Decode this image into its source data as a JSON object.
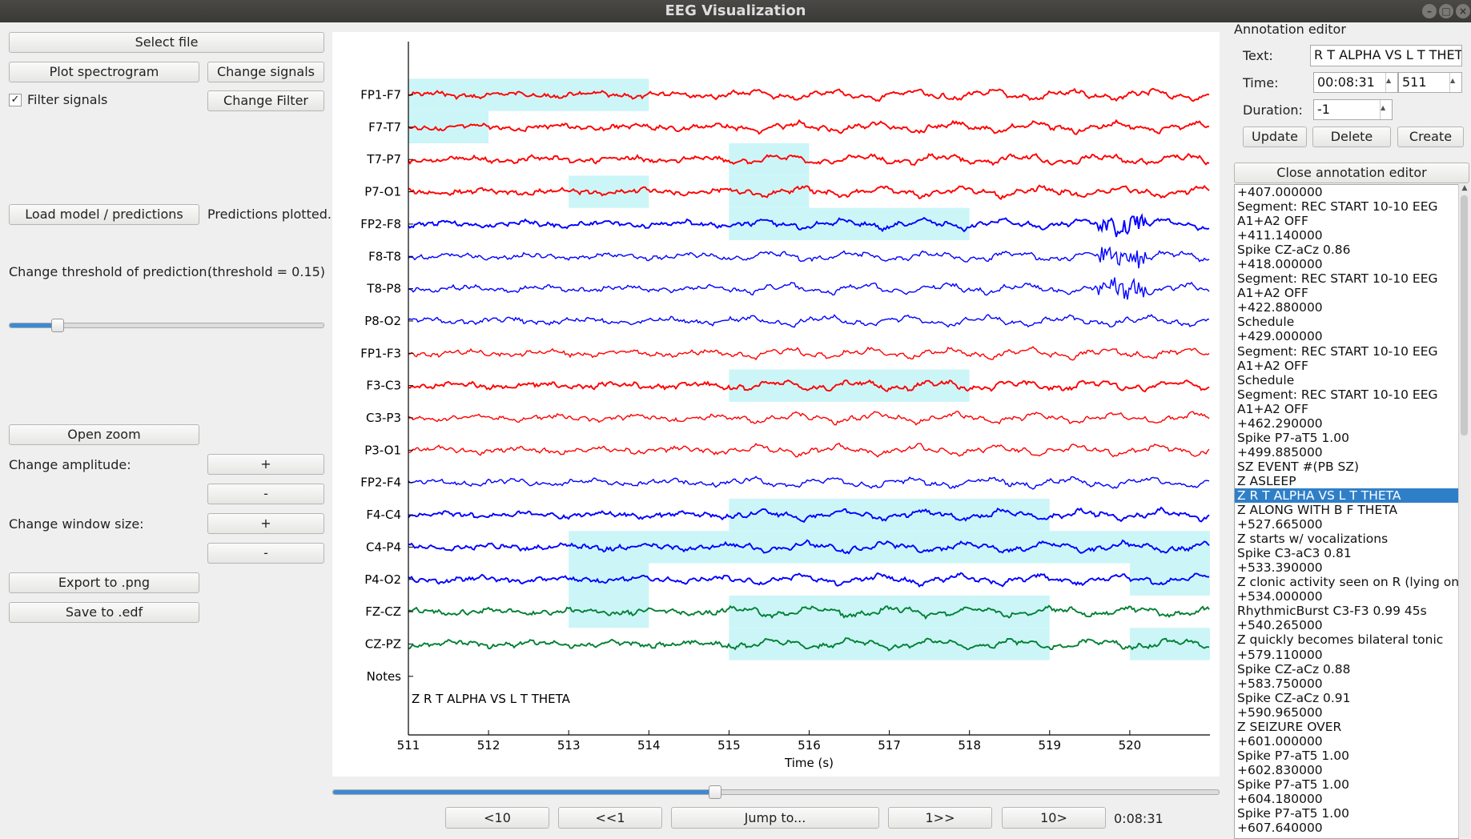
{
  "window": {
    "title": "EEG Visualization"
  },
  "left": {
    "select_file": "Select file",
    "plot_spectrogram": "Plot spectrogram",
    "change_signals": "Change signals",
    "filter_signals": "Filter signals",
    "filter_checked": "✓",
    "change_filter": "Change Filter",
    "load_model": "Load model / predictions",
    "predictions_status": "Predictions plotted.",
    "change_threshold": "Change threshold of prediction:",
    "threshold_value": "(threshold = 0.15)",
    "threshold_fraction": 0.15,
    "open_zoom": "Open zoom",
    "change_amplitude": "Change amplitude:",
    "plus": "+",
    "minus": "-",
    "change_window": "Change window size:",
    "export_png": "Export to .png",
    "save_edf": "Save to .edf"
  },
  "plot": {
    "channels": [
      {
        "name": "FP1-F7",
        "color": "#ff0000"
      },
      {
        "name": "F7-T7",
        "color": "#ff0000"
      },
      {
        "name": "T7-P7",
        "color": "#ff0000"
      },
      {
        "name": "P7-O1",
        "color": "#ff0000"
      },
      {
        "name": "FP2-F8",
        "color": "#0000ff"
      },
      {
        "name": "F8-T8",
        "color": "#0000ff"
      },
      {
        "name": "T8-P8",
        "color": "#0000ff"
      },
      {
        "name": "P8-O2",
        "color": "#0000ff"
      },
      {
        "name": "FP1-F3",
        "color": "#ff0000"
      },
      {
        "name": "F3-C3",
        "color": "#ff0000"
      },
      {
        "name": "C3-P3",
        "color": "#ff0000"
      },
      {
        "name": "P3-O1",
        "color": "#ff0000"
      },
      {
        "name": "FP2-F4",
        "color": "#0000ff"
      },
      {
        "name": "F4-C4",
        "color": "#0000ff"
      },
      {
        "name": "C4-P4",
        "color": "#0000ff"
      },
      {
        "name": "P4-O2",
        "color": "#0000ff"
      },
      {
        "name": "FZ-CZ",
        "color": "#008033"
      },
      {
        "name": "CZ-PZ",
        "color": "#008033"
      }
    ],
    "notes_label": "Notes",
    "note_text": "Z R T ALPHA VS L T THETA",
    "x_ticks": [
      "511",
      "512",
      "513",
      "514",
      "515",
      "516",
      "517",
      "518",
      "519",
      "520"
    ],
    "xlim": [
      511,
      521
    ],
    "xlabel": "Time (s)",
    "highlight_color": "#ccf5f7",
    "highlights": [
      {
        "ch": 0,
        "from": 511,
        "to": 514
      },
      {
        "ch": 1,
        "from": 511,
        "to": 512
      },
      {
        "ch": 2,
        "from": 515,
        "to": 516
      },
      {
        "ch": 3,
        "from": 513,
        "to": 514
      },
      {
        "ch": 3,
        "from": 515,
        "to": 516
      },
      {
        "ch": 4,
        "from": 515,
        "to": 518
      },
      {
        "ch": 9,
        "from": 515,
        "to": 518
      },
      {
        "ch": 13,
        "from": 515,
        "to": 519
      },
      {
        "ch": 14,
        "from": 513,
        "to": 521
      },
      {
        "ch": 15,
        "from": 513,
        "to": 514
      },
      {
        "ch": 15,
        "from": 520,
        "to": 521
      },
      {
        "ch": 16,
        "from": 513,
        "to": 514
      },
      {
        "ch": 16,
        "from": 515,
        "to": 518
      },
      {
        "ch": 16,
        "from": 518,
        "to": 519
      },
      {
        "ch": 17,
        "from": 515,
        "to": 519
      },
      {
        "ch": 17,
        "from": 520,
        "to": 521
      }
    ]
  },
  "nav": {
    "position_fraction": 0.43,
    "back10": "<10",
    "back1": "<<1",
    "jump": "Jump to...",
    "fwd1": "1>>",
    "fwd10": "10>",
    "time": "0:08:31"
  },
  "annotation_editor": {
    "title": "Annotation editor",
    "text_label": "Text:",
    "text_value": "R T ALPHA VS L T THETA",
    "time_label": "Time:",
    "time_value": "00:08:31",
    "time_seconds": "511",
    "duration_label": "Duration:",
    "duration_value": "-1",
    "update": "Update",
    "delete": "Delete",
    "create": "Create",
    "close": "Close annotation editor",
    "selected_index": 21,
    "items": [
      "+407.000000",
      "Segment: REC START 10-10 EEG",
      "A1+A2 OFF",
      "+411.140000",
      "Spike CZ-aCz 0.86",
      "+418.000000",
      "Segment: REC START 10-10 EEG",
      "A1+A2 OFF",
      "+422.880000",
      "Schedule",
      "+429.000000",
      "Segment: REC START 10-10 EEG",
      "A1+A2 OFF",
      "Schedule",
      "Segment: REC START 10-10 EEG",
      "A1+A2 OFF",
      "+462.290000",
      "Spike P7-aT5 1.00",
      "+499.885000",
      "SZ EVENT #(PB SZ)",
      "Z ASLEEP",
      "Z R T ALPHA VS L T THETA",
      "Z ALONG WITH B F THETA",
      "+527.665000",
      "Z starts w/ vocalizations",
      "Spike C3-aC3 0.81",
      "+533.390000",
      "Z clonic activity seen on R (lying on",
      "+534.000000",
      "RhythmicBurst C3-F3 0.99 45s",
      "+540.265000",
      "Z quickly becomes bilateral tonic",
      "+579.110000",
      "Spike CZ-aCz 0.88",
      "+583.750000",
      "Spike CZ-aCz 0.91",
      "+590.965000",
      "Z SEIZURE OVER",
      "+601.000000",
      "Spike P7-aT5 1.00",
      "+602.830000",
      "Spike P7-aT5 1.00",
      "+604.180000",
      "Spike P7-aT5 1.00",
      "+607.640000"
    ]
  }
}
